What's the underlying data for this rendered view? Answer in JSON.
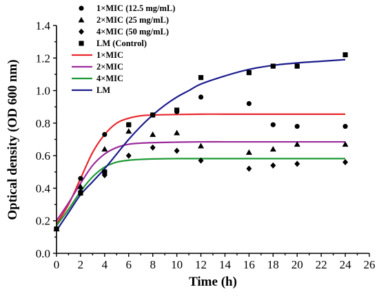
{
  "chart_data": {
    "type": "scatter",
    "xlabel": "Time (h)",
    "ylabel": "Optical density (OD 600 nm)",
    "xlim": [
      0,
      26
    ],
    "ylim": [
      0.0,
      1.4
    ],
    "x_ticks": [
      0,
      2,
      4,
      6,
      8,
      10,
      12,
      14,
      16,
      18,
      20,
      22,
      24,
      26
    ],
    "y_ticks": [
      0.0,
      0.2,
      0.4,
      0.6,
      0.8,
      1.0,
      1.2,
      1.4
    ],
    "x_tick_labels": [
      "0",
      "2",
      "4",
      "6",
      "8",
      "10",
      "12",
      "14",
      "16",
      "18",
      "20",
      "22",
      "24",
      "26"
    ],
    "y_tick_labels": [
      "0.0",
      "0.2",
      "0.4",
      "0.6",
      "0.8",
      "1.0",
      "1.2",
      "1.4"
    ],
    "grid": false,
    "legend_placement": "top-left",
    "series": [
      {
        "name": "1×MIC (12.5 mg/mL)",
        "kind": "points",
        "marker": "circle",
        "color": "#000000",
        "x": [
          0,
          2,
          4,
          6,
          8,
          10,
          12,
          16,
          18,
          20,
          24
        ],
        "y": [
          0.15,
          0.46,
          0.73,
          0.79,
          0.85,
          0.87,
          0.96,
          0.92,
          0.79,
          0.78,
          0.78
        ]
      },
      {
        "name": "2×MIC (25 mg/mL)",
        "kind": "points",
        "marker": "triangle",
        "color": "#000000",
        "x": [
          0,
          2,
          4,
          6,
          8,
          10,
          12,
          16,
          18,
          20,
          24
        ],
        "y": [
          0.15,
          0.41,
          0.64,
          0.75,
          0.73,
          0.74,
          0.66,
          0.62,
          0.64,
          0.67,
          0.67
        ]
      },
      {
        "name": "4×MIC (50 mg/mL)",
        "kind": "points",
        "marker": "diamond",
        "color": "#000000",
        "x": [
          0,
          2,
          4,
          6,
          8,
          10,
          12,
          16,
          18,
          20,
          24
        ],
        "y": [
          0.15,
          0.38,
          0.48,
          0.6,
          0.65,
          0.63,
          0.57,
          0.52,
          0.54,
          0.55,
          0.56
        ]
      },
      {
        "name": "LM (Control)",
        "kind": "points",
        "marker": "square",
        "color": "#000000",
        "x": [
          0,
          2,
          4,
          6,
          8,
          10,
          12,
          16,
          18,
          20,
          24
        ],
        "y": [
          0.15,
          0.37,
          0.5,
          0.79,
          0.85,
          0.88,
          1.08,
          1.11,
          1.15,
          1.15,
          1.22
        ]
      },
      {
        "name": "1×MIC",
        "kind": "line",
        "color": "#e8262b",
        "x": [
          0,
          1,
          2,
          3,
          4,
          5,
          6,
          7,
          8,
          10,
          12,
          14,
          16,
          18,
          20,
          22,
          24
        ],
        "y": [
          0.18,
          0.3,
          0.46,
          0.62,
          0.73,
          0.8,
          0.83,
          0.845,
          0.85,
          0.853,
          0.855,
          0.855,
          0.855,
          0.855,
          0.855,
          0.855,
          0.855
        ]
      },
      {
        "name": "2×MIC",
        "kind": "line",
        "color": "#9b2a9b",
        "x": [
          0,
          1,
          2,
          3,
          4,
          5,
          6,
          7,
          8,
          10,
          12,
          14,
          16,
          18,
          20,
          22,
          24
        ],
        "y": [
          0.2,
          0.31,
          0.43,
          0.54,
          0.61,
          0.65,
          0.67,
          0.677,
          0.68,
          0.683,
          0.685,
          0.685,
          0.685,
          0.685,
          0.685,
          0.685,
          0.685
        ]
      },
      {
        "name": "4×MIC",
        "kind": "line",
        "color": "#1e9a34",
        "x": [
          0,
          1,
          2,
          3,
          4,
          5,
          6,
          7,
          8,
          10,
          12,
          14,
          16,
          18,
          20,
          22,
          24
        ],
        "y": [
          0.17,
          0.27,
          0.38,
          0.47,
          0.53,
          0.56,
          0.572,
          0.577,
          0.58,
          0.582,
          0.582,
          0.582,
          0.582,
          0.582,
          0.582,
          0.582,
          0.582
        ]
      },
      {
        "name": "LM",
        "kind": "line",
        "color": "#1a1a8c",
        "x": [
          0,
          1,
          2,
          3,
          4,
          5,
          6,
          7,
          8,
          9,
          10,
          11,
          12,
          14,
          16,
          18,
          20,
          22,
          24
        ],
        "y": [
          0.14,
          0.25,
          0.36,
          0.44,
          0.52,
          0.61,
          0.7,
          0.78,
          0.85,
          0.91,
          0.96,
          1.0,
          1.04,
          1.09,
          1.13,
          1.155,
          1.17,
          1.18,
          1.19
        ]
      }
    ]
  }
}
